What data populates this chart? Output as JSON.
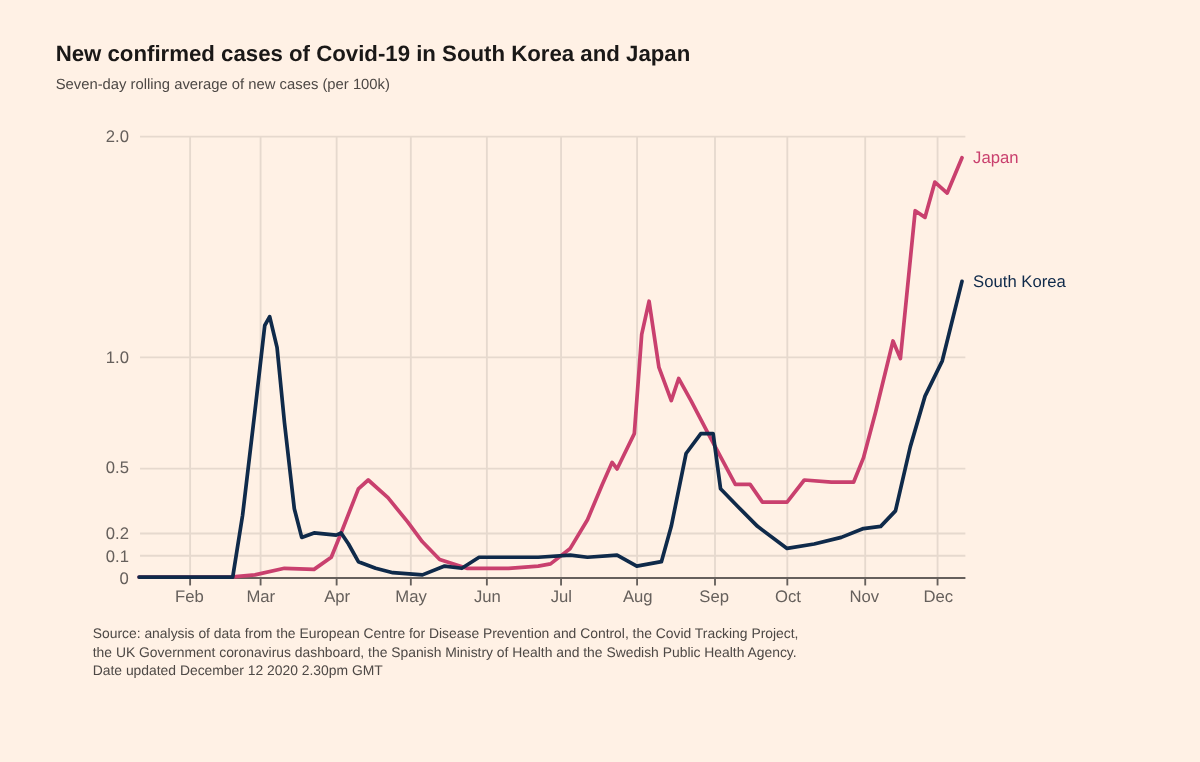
{
  "chart_data": {
    "type": "line",
    "title": "New confirmed cases of Covid-19 in South Korea and Japan",
    "subtitle": "Seven-day rolling average of new cases (per 100k)",
    "xlim": [
      "2020-01-12",
      "2020-12-12"
    ],
    "xticks": [
      {
        "value": "2020-02-01",
        "label": "Feb"
      },
      {
        "value": "2020-03-01",
        "label": "Mar"
      },
      {
        "value": "2020-04-01",
        "label": "Apr"
      },
      {
        "value": "2020-05-01",
        "label": "May"
      },
      {
        "value": "2020-06-01",
        "label": "Jun"
      },
      {
        "value": "2020-07-01",
        "label": "Jul"
      },
      {
        "value": "2020-08-01",
        "label": "Aug"
      },
      {
        "value": "2020-09-01",
        "label": "Sep"
      },
      {
        "value": "2020-10-01",
        "label": "Oct"
      },
      {
        "value": "2020-11-01",
        "label": "Nov"
      },
      {
        "value": "2020-12-01",
        "label": "Dec"
      }
    ],
    "ylim": [
      0,
      2
    ],
    "yticks": [
      0,
      0.1,
      0.2,
      0.5,
      {
        "value": 1,
        "label": "1.0"
      },
      {
        "value": 2,
        "label": "2.0"
      }
    ],
    "grid": true,
    "legend": false,
    "marker": "none",
    "line_style": "solid",
    "series": [
      {
        "name": "Japan",
        "color": "#c9406e",
        "x": [
          "2020-01-12",
          "2020-02-18",
          "2020-02-28",
          "2020-03-11",
          "2020-03-23",
          "2020-03-30",
          "2020-04-03",
          "2020-04-10",
          "2020-04-14",
          "2020-04-22",
          "2020-04-30",
          "2020-05-06",
          "2020-05-13",
          "2020-05-24",
          "2020-06-10",
          "2020-06-22",
          "2020-06-27",
          "2020-07-05",
          "2020-07-12",
          "2020-07-18",
          "2020-07-22",
          "2020-07-24",
          "2020-07-31",
          "2020-08-03",
          "2020-08-06",
          "2020-08-10",
          "2020-08-15",
          "2020-08-18",
          "2020-08-23",
          "2020-08-30",
          "2020-09-10",
          "2020-09-16",
          "2020-09-21",
          "2020-10-01",
          "2020-10-08",
          "2020-10-19",
          "2020-10-28",
          "2020-11-01",
          "2020-11-06",
          "2020-11-13",
          "2020-11-16",
          "2020-11-22",
          "2020-11-26",
          "2020-11-30",
          "2020-12-05",
          "2020-12-11"
        ],
        "values": [
          0,
          0,
          0.01,
          0.04,
          0.035,
          0.09,
          0.2,
          0.4,
          0.44,
          0.36,
          0.25,
          0.16,
          0.08,
          0.04,
          0.04,
          0.05,
          0.06,
          0.13,
          0.26,
          0.42,
          0.52,
          0.49,
          0.65,
          1.1,
          1.25,
          0.95,
          0.8,
          0.9,
          0.8,
          0.65,
          0.42,
          0.42,
          0.34,
          0.34,
          0.44,
          0.43,
          0.43,
          0.54,
          0.75,
          1.07,
          0.99,
          1.66,
          1.63,
          1.79,
          1.74,
          1.9
        ]
      },
      {
        "name": "South Korea",
        "color": "#0f2a4a",
        "x": [
          "2020-01-12",
          "2020-02-19",
          "2020-02-23",
          "2020-02-28",
          "2020-03-03",
          "2020-03-05",
          "2020-03-08",
          "2020-03-11",
          "2020-03-15",
          "2020-03-18",
          "2020-03-23",
          "2020-04-01",
          "2020-04-03",
          "2020-04-06",
          "2020-04-10",
          "2020-04-17",
          "2020-04-24",
          "2020-05-06",
          "2020-05-15",
          "2020-05-22",
          "2020-05-29",
          "2020-06-10",
          "2020-06-22",
          "2020-07-05",
          "2020-07-12",
          "2020-07-24",
          "2020-08-01",
          "2020-08-11",
          "2020-08-15",
          "2020-08-21",
          "2020-08-27",
          "2020-09-01",
          "2020-09-04",
          "2020-09-11",
          "2020-09-19",
          "2020-10-01",
          "2020-10-12",
          "2020-10-23",
          "2020-11-01",
          "2020-11-08",
          "2020-11-14",
          "2020-11-20",
          "2020-11-26",
          "2020-12-03",
          "2020-12-11"
        ],
        "values": [
          0,
          0,
          0.28,
          0.75,
          1.14,
          1.18,
          1.04,
          0.7,
          0.31,
          0.18,
          0.2,
          0.19,
          0.2,
          0.15,
          0.07,
          0.04,
          0.02,
          0.01,
          0.05,
          0.04,
          0.09,
          0.09,
          0.09,
          0.1,
          0.09,
          0.1,
          0.05,
          0.07,
          0.23,
          0.56,
          0.65,
          0.65,
          0.4,
          0.32,
          0.23,
          0.13,
          0.15,
          0.18,
          0.22,
          0.23,
          0.3,
          0.59,
          0.82,
          0.98,
          1.34
        ]
      }
    ],
    "annotations": [
      "Source: analysis of data from the European Centre for Disease Prevention and Control, the Covid Tracking Project,",
      "the UK Government coronavirus dashboard, the Spanish Ministry of Health and the Swedish Public Health Agency.",
      "Date updated December 12 2020 2.30pm GMT"
    ]
  }
}
